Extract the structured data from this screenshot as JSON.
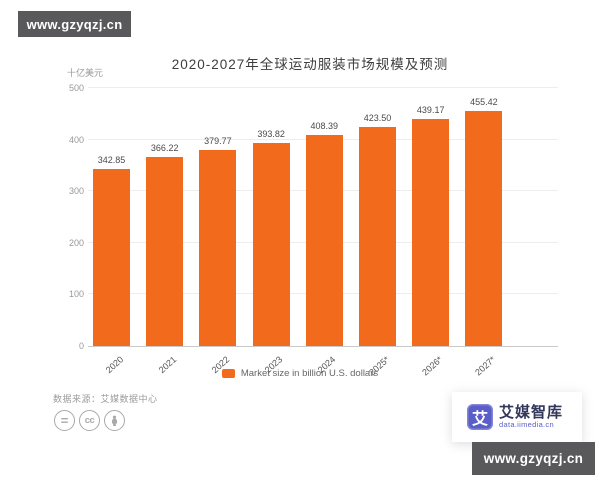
{
  "watermarks": {
    "top": "www.gzyqzj.cn",
    "bottom": "www.gzyqzj.cn"
  },
  "chart_data": {
    "type": "bar",
    "title": "2020-2027年全球运动服装市场规模及预测",
    "unit_label": "十亿美元",
    "categories": [
      "2020",
      "2021",
      "2022",
      "2023",
      "2024",
      "2025*",
      "2026*",
      "2027*"
    ],
    "values": [
      342.85,
      366.22,
      379.77,
      393.82,
      408.39,
      423.5,
      439.17,
      455.42
    ],
    "ylim": [
      0,
      500
    ],
    "yticks": [
      0,
      100,
      200,
      300,
      400,
      500
    ],
    "legend": "Market size in billion U.S. dollars",
    "bar_color": "#F26B1D",
    "grid": true,
    "legend_position": "bottom"
  },
  "footer": {
    "source": "数据来源：艾媒数据中心",
    "license_icons": [
      "equals-icon",
      "cc-icon",
      "person-icon"
    ]
  },
  "logo": {
    "mark": "艾",
    "title": "艾媒智库",
    "url": "data.iimedia.cn"
  }
}
